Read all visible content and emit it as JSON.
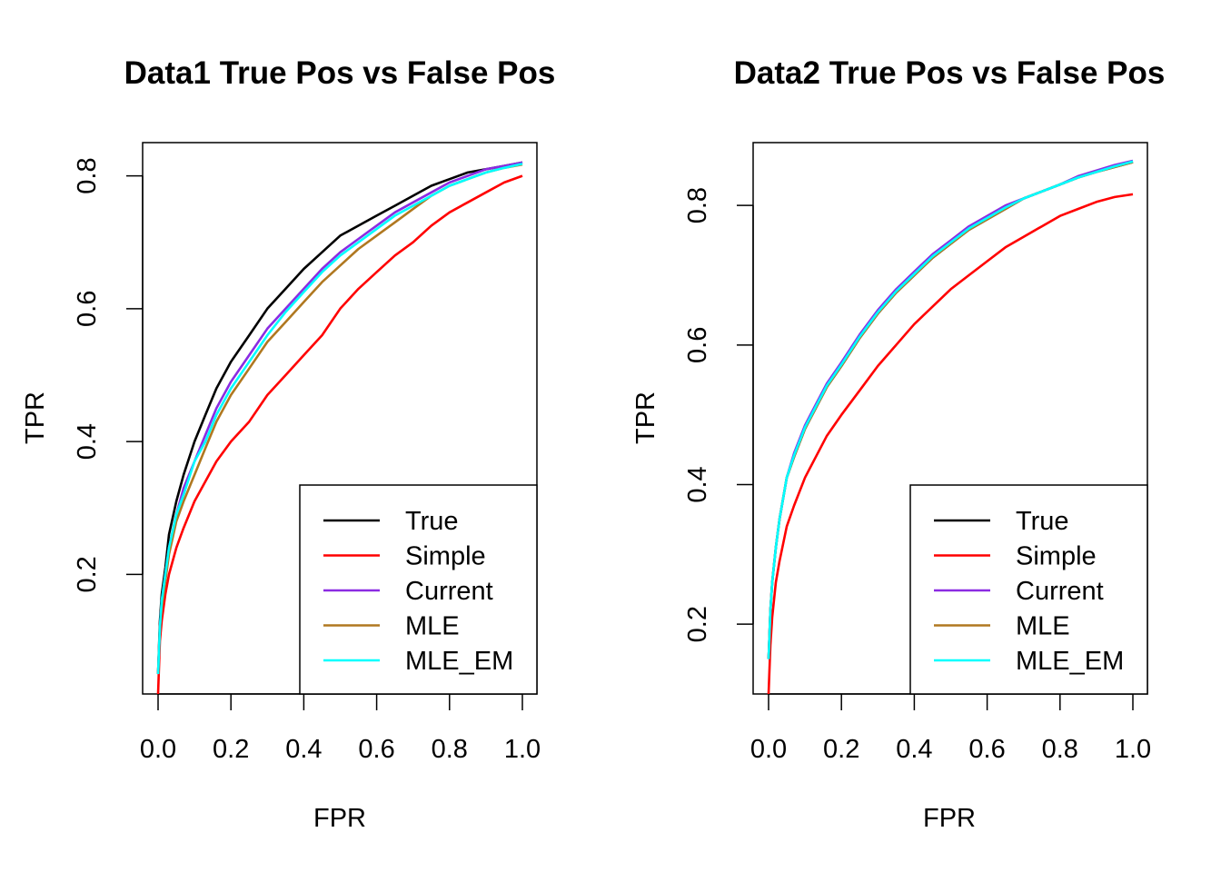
{
  "chart_data": [
    {
      "type": "line",
      "title": "Data1 True Pos vs False Pos",
      "xlabel": "FPR",
      "ylabel": "TPR",
      "xlim": [
        0.0,
        1.0
      ],
      "ylim": [
        0.02,
        0.85
      ],
      "x_ticks": [
        "0.0",
        "0.2",
        "0.4",
        "0.6",
        "0.8",
        "1.0"
      ],
      "y_ticks": [
        "0.2",
        "0.4",
        "0.6",
        "0.8"
      ],
      "legend_position": "bottom-right",
      "grid": false,
      "series": [
        {
          "name": "True",
          "color": "#000000",
          "x": [
            0,
            0.005,
            0.01,
            0.02,
            0.03,
            0.05,
            0.07,
            0.1,
            0.13,
            0.16,
            0.2,
            0.25,
            0.3,
            0.35,
            0.4,
            0.45,
            0.5,
            0.55,
            0.6,
            0.65,
            0.7,
            0.75,
            0.8,
            0.85,
            0.9,
            0.95,
            1.0
          ],
          "y": [
            0.05,
            0.13,
            0.17,
            0.21,
            0.26,
            0.31,
            0.35,
            0.4,
            0.44,
            0.48,
            0.52,
            0.56,
            0.6,
            0.63,
            0.66,
            0.685,
            0.71,
            0.725,
            0.74,
            0.755,
            0.77,
            0.785,
            0.795,
            0.805,
            0.81,
            0.815,
            0.82
          ]
        },
        {
          "name": "Simple",
          "color": "#ff0000",
          "x": [
            0,
            0.005,
            0.01,
            0.02,
            0.03,
            0.05,
            0.07,
            0.1,
            0.13,
            0.16,
            0.2,
            0.25,
            0.3,
            0.35,
            0.4,
            0.45,
            0.5,
            0.55,
            0.6,
            0.65,
            0.7,
            0.75,
            0.8,
            0.85,
            0.9,
            0.95,
            1.0
          ],
          "y": [
            0.02,
            0.1,
            0.13,
            0.17,
            0.2,
            0.24,
            0.27,
            0.31,
            0.34,
            0.37,
            0.4,
            0.43,
            0.47,
            0.5,
            0.53,
            0.56,
            0.6,
            0.63,
            0.655,
            0.68,
            0.7,
            0.725,
            0.745,
            0.76,
            0.775,
            0.79,
            0.8
          ]
        },
        {
          "name": "Current",
          "color": "#8b2be2",
          "x": [
            0,
            0.005,
            0.01,
            0.02,
            0.03,
            0.05,
            0.07,
            0.1,
            0.13,
            0.16,
            0.2,
            0.25,
            0.3,
            0.35,
            0.4,
            0.45,
            0.5,
            0.55,
            0.6,
            0.65,
            0.7,
            0.75,
            0.8,
            0.85,
            0.9,
            0.95,
            1.0
          ],
          "y": [
            0.05,
            0.12,
            0.16,
            0.2,
            0.24,
            0.29,
            0.33,
            0.37,
            0.41,
            0.45,
            0.49,
            0.53,
            0.57,
            0.6,
            0.63,
            0.66,
            0.685,
            0.705,
            0.725,
            0.745,
            0.76,
            0.775,
            0.79,
            0.8,
            0.81,
            0.815,
            0.82
          ]
        },
        {
          "name": "MLE",
          "color": "#b07820",
          "x": [
            0,
            0.005,
            0.01,
            0.02,
            0.03,
            0.05,
            0.07,
            0.1,
            0.13,
            0.16,
            0.2,
            0.25,
            0.3,
            0.35,
            0.4,
            0.45,
            0.5,
            0.55,
            0.6,
            0.65,
            0.7,
            0.75,
            0.8,
            0.85,
            0.9,
            0.95,
            1.0
          ],
          "y": [
            0.05,
            0.12,
            0.15,
            0.19,
            0.23,
            0.28,
            0.31,
            0.35,
            0.39,
            0.43,
            0.47,
            0.51,
            0.55,
            0.58,
            0.61,
            0.64,
            0.665,
            0.69,
            0.71,
            0.73,
            0.75,
            0.77,
            0.785,
            0.795,
            0.805,
            0.812,
            0.817
          ]
        },
        {
          "name": "MLE_EM",
          "color": "#00ffff",
          "x": [
            0,
            0.005,
            0.01,
            0.02,
            0.03,
            0.05,
            0.07,
            0.1,
            0.13,
            0.16,
            0.2,
            0.25,
            0.3,
            0.35,
            0.4,
            0.45,
            0.5,
            0.55,
            0.6,
            0.65,
            0.7,
            0.75,
            0.8,
            0.85,
            0.9,
            0.95,
            1.0
          ],
          "y": [
            0.05,
            0.12,
            0.16,
            0.2,
            0.24,
            0.29,
            0.32,
            0.37,
            0.4,
            0.44,
            0.48,
            0.52,
            0.56,
            0.595,
            0.625,
            0.655,
            0.68,
            0.7,
            0.72,
            0.74,
            0.755,
            0.77,
            0.785,
            0.795,
            0.805,
            0.812,
            0.818
          ]
        }
      ]
    },
    {
      "type": "line",
      "title": "Data2 True Pos vs False Pos",
      "xlabel": "FPR",
      "ylabel": "TPR",
      "xlim": [
        0.0,
        1.0
      ],
      "ylim": [
        0.1,
        0.89
      ],
      "x_ticks": [
        "0.0",
        "0.2",
        "0.4",
        "0.6",
        "0.8",
        "1.0"
      ],
      "y_ticks": [
        "0.2",
        "0.4",
        "0.6",
        "0.8"
      ],
      "legend_position": "bottom-right",
      "grid": false,
      "series": [
        {
          "name": "True",
          "color": "#000000",
          "x": [
            0,
            0.005,
            0.01,
            0.02,
            0.03,
            0.05,
            0.07,
            0.1,
            0.13,
            0.16,
            0.2,
            0.25,
            0.3,
            0.35,
            0.4,
            0.45,
            0.5,
            0.55,
            0.6,
            0.65,
            0.7,
            0.75,
            0.8,
            0.85,
            0.9,
            0.95,
            1.0
          ],
          "y": [
            0.15,
            0.22,
            0.26,
            0.31,
            0.35,
            0.41,
            0.44,
            0.48,
            0.51,
            0.54,
            0.57,
            0.61,
            0.645,
            0.675,
            0.7,
            0.725,
            0.745,
            0.765,
            0.78,
            0.795,
            0.81,
            0.82,
            0.83,
            0.84,
            0.848,
            0.855,
            0.862
          ]
        },
        {
          "name": "Simple",
          "color": "#ff0000",
          "x": [
            0,
            0.005,
            0.01,
            0.02,
            0.03,
            0.05,
            0.07,
            0.1,
            0.13,
            0.16,
            0.2,
            0.25,
            0.3,
            0.35,
            0.4,
            0.45,
            0.5,
            0.55,
            0.6,
            0.65,
            0.7,
            0.75,
            0.8,
            0.85,
            0.9,
            0.95,
            1.0
          ],
          "y": [
            0.1,
            0.17,
            0.21,
            0.26,
            0.29,
            0.34,
            0.37,
            0.41,
            0.44,
            0.47,
            0.5,
            0.535,
            0.57,
            0.6,
            0.63,
            0.655,
            0.68,
            0.7,
            0.72,
            0.74,
            0.755,
            0.77,
            0.785,
            0.795,
            0.805,
            0.812,
            0.816
          ]
        },
        {
          "name": "Current",
          "color": "#8b2be2",
          "x": [
            0,
            0.005,
            0.01,
            0.02,
            0.03,
            0.05,
            0.07,
            0.1,
            0.13,
            0.16,
            0.2,
            0.25,
            0.3,
            0.35,
            0.4,
            0.45,
            0.5,
            0.55,
            0.6,
            0.65,
            0.7,
            0.75,
            0.8,
            0.85,
            0.9,
            0.95,
            1.0
          ],
          "y": [
            0.15,
            0.22,
            0.26,
            0.31,
            0.35,
            0.41,
            0.445,
            0.485,
            0.515,
            0.545,
            0.575,
            0.615,
            0.65,
            0.68,
            0.705,
            0.73,
            0.75,
            0.77,
            0.785,
            0.8,
            0.81,
            0.82,
            0.83,
            0.842,
            0.85,
            0.858,
            0.864
          ]
        },
        {
          "name": "MLE",
          "color": "#b07820",
          "x": [
            0,
            0.005,
            0.01,
            0.02,
            0.03,
            0.05,
            0.07,
            0.1,
            0.13,
            0.16,
            0.2,
            0.25,
            0.3,
            0.35,
            0.4,
            0.45,
            0.5,
            0.55,
            0.6,
            0.65,
            0.7,
            0.75,
            0.8,
            0.85,
            0.9,
            0.95,
            1.0
          ],
          "y": [
            0.15,
            0.22,
            0.26,
            0.31,
            0.35,
            0.41,
            0.44,
            0.48,
            0.51,
            0.54,
            0.57,
            0.61,
            0.645,
            0.675,
            0.7,
            0.725,
            0.745,
            0.765,
            0.78,
            0.795,
            0.81,
            0.82,
            0.83,
            0.84,
            0.848,
            0.855,
            0.862
          ]
        },
        {
          "name": "MLE_EM",
          "color": "#00ffff",
          "x": [
            0,
            0.005,
            0.01,
            0.02,
            0.03,
            0.05,
            0.07,
            0.1,
            0.13,
            0.16,
            0.2,
            0.25,
            0.3,
            0.35,
            0.4,
            0.45,
            0.5,
            0.55,
            0.6,
            0.65,
            0.7,
            0.75,
            0.8,
            0.85,
            0.9,
            0.95,
            1.0
          ],
          "y": [
            0.15,
            0.22,
            0.26,
            0.31,
            0.35,
            0.41,
            0.442,
            0.482,
            0.512,
            0.542,
            0.572,
            0.612,
            0.647,
            0.677,
            0.702,
            0.727,
            0.747,
            0.767,
            0.782,
            0.797,
            0.81,
            0.82,
            0.83,
            0.84,
            0.848,
            0.856,
            0.863
          ]
        }
      ]
    }
  ]
}
